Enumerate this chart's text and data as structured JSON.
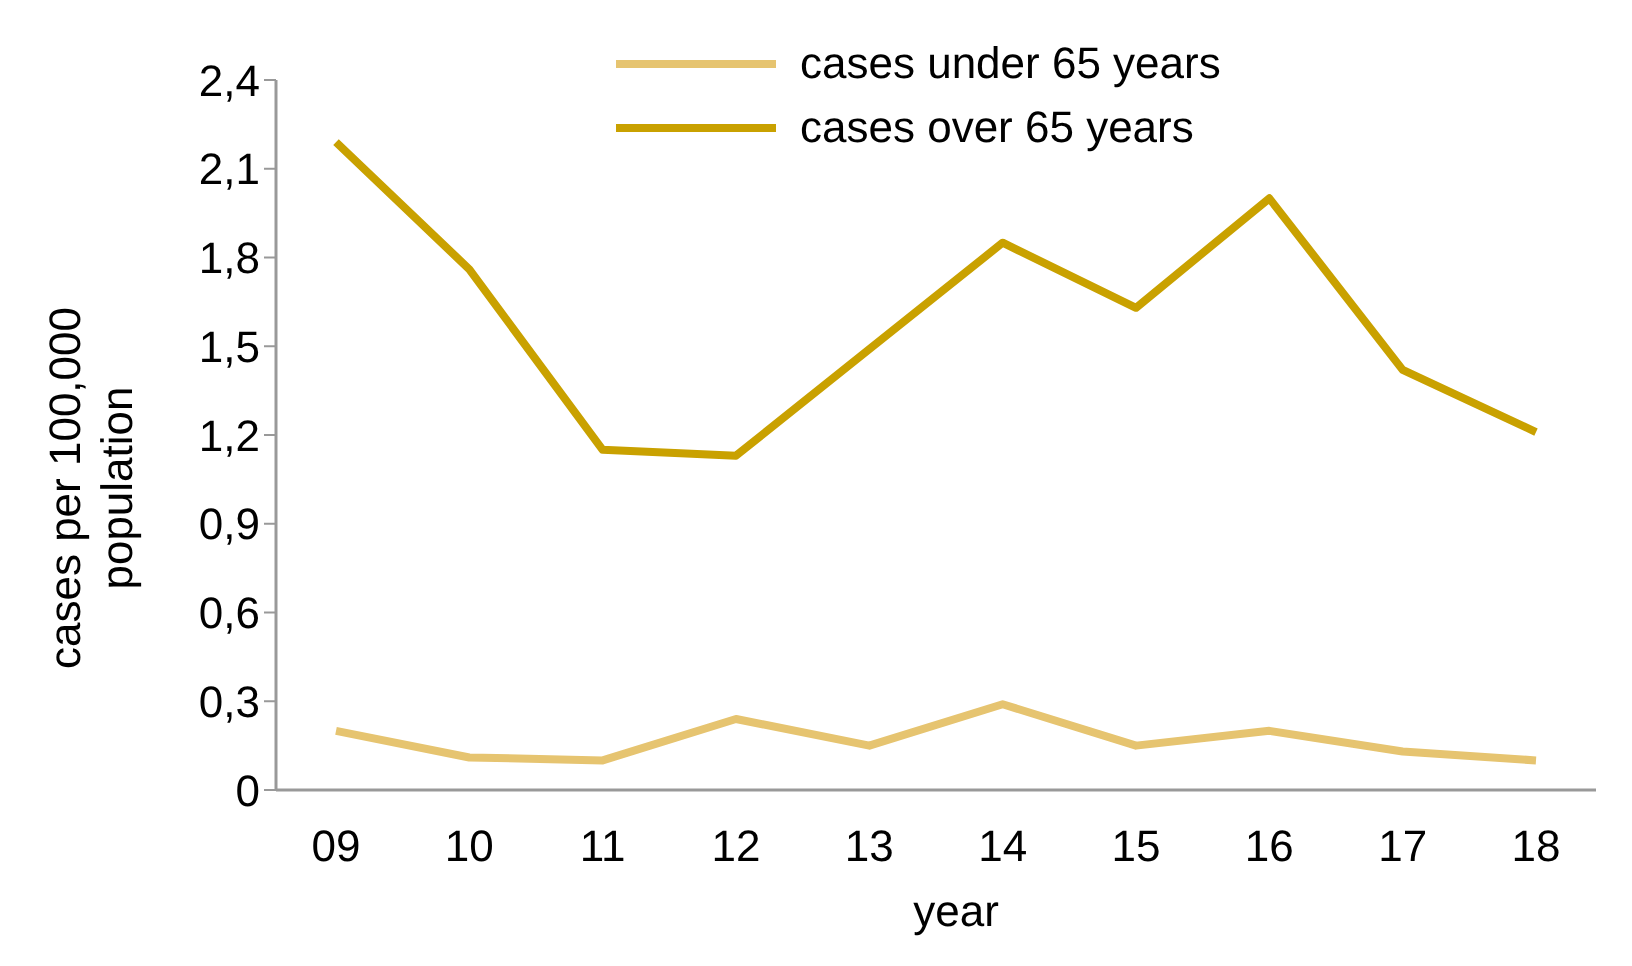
{
  "chart_data": {
    "type": "line",
    "xlabel": "year",
    "ylabel": "cases per 100,000 population",
    "categories": [
      "09",
      "10",
      "11",
      "12",
      "13",
      "14",
      "15",
      "16",
      "17",
      "18"
    ],
    "series": [
      {
        "name": "cases under 65 years",
        "color": "#e6c470",
        "values": [
          0.2,
          0.11,
          0.1,
          0.24,
          0.15,
          0.29,
          0.15,
          0.2,
          0.13,
          0.1
        ]
      },
      {
        "name": "cases over 65 years",
        "color": "#c9a100",
        "values": [
          2.19,
          1.76,
          1.15,
          1.13,
          1.49,
          1.85,
          1.63,
          2.0,
          1.42,
          1.21
        ]
      }
    ],
    "ylim": [
      0,
      2.4
    ],
    "yticks": [
      {
        "value": 0,
        "label": "0"
      },
      {
        "value": 0.3,
        "label": "0,3"
      },
      {
        "value": 0.6,
        "label": "0,6"
      },
      {
        "value": 0.9,
        "label": "0,9"
      },
      {
        "value": 1.2,
        "label": "1,2"
      },
      {
        "value": 1.5,
        "label": "1,5"
      },
      {
        "value": 1.8,
        "label": "1,8"
      },
      {
        "value": 2.1,
        "label": "2,1"
      },
      {
        "value": 2.4,
        "label": "2,4"
      }
    ],
    "legend": "top",
    "grid": false,
    "marker": "none",
    "line_style": "solid"
  }
}
